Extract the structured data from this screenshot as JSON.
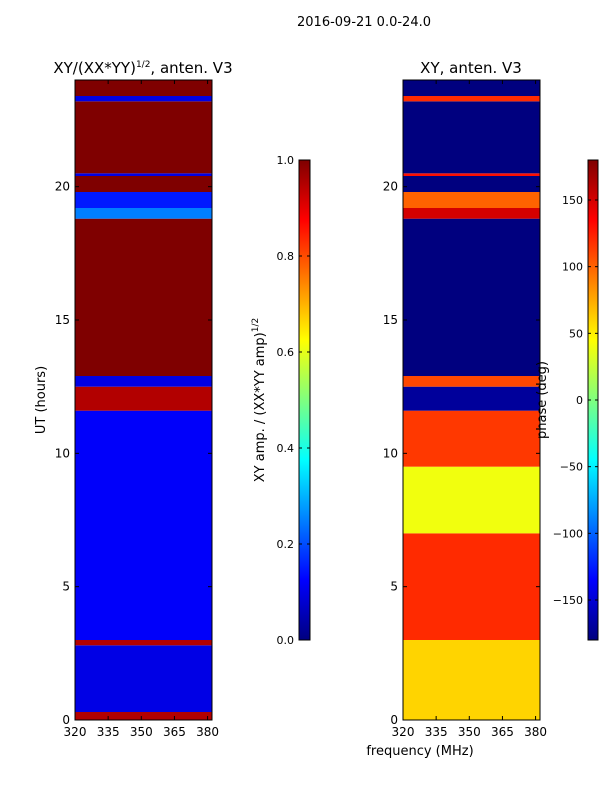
{
  "figure": {
    "suptitle": "2016-09-21 0.0-24.0",
    "xlabel": "frequency (MHz)",
    "ylabel": "UT (hours)"
  },
  "colors": {
    "jet_stops": [
      "#00007f",
      "#0000ff",
      "#007fff",
      "#00ffff",
      "#7fff7f",
      "#ffff00",
      "#ff7f00",
      "#ff0000",
      "#7f0000"
    ],
    "frame": "#000000"
  },
  "chart_data": [
    {
      "type": "heatmap",
      "title": "XY/(XX*YY)",
      "title_sup": "1/2",
      "title_suffix": ", anten. V3",
      "xlabel": "frequency (MHz)",
      "ylabel": "UT (hours)",
      "xlim": [
        320,
        382
      ],
      "ylim": [
        0,
        24
      ],
      "xticks": [
        320,
        335,
        350,
        365,
        380
      ],
      "yticks": [
        0,
        5,
        10,
        15,
        20
      ],
      "colorbar": {
        "label": "XY amp. / (XX*YY amp)",
        "label_sup": "1/2",
        "range": [
          0.0,
          1.0
        ],
        "ticks": [
          "0.0",
          "0.2",
          "0.4",
          "0.6",
          "0.8",
          "1.0"
        ],
        "tick_values": [
          0.0,
          0.2,
          0.4,
          0.6,
          0.8,
          1.0
        ]
      },
      "bands": [
        {
          "ut_start": 0.0,
          "ut_end": 0.3,
          "value": 0.95
        },
        {
          "ut_start": 0.3,
          "ut_end": 2.8,
          "value": 0.1
        },
        {
          "ut_start": 2.8,
          "ut_end": 3.0,
          "value": 0.95
        },
        {
          "ut_start": 3.0,
          "ut_end": 11.6,
          "value": 0.12
        },
        {
          "ut_start": 11.6,
          "ut_end": 12.5,
          "value": 0.95
        },
        {
          "ut_start": 12.5,
          "ut_end": 12.9,
          "value": 0.1
        },
        {
          "ut_start": 12.9,
          "ut_end": 18.8,
          "value": 1.0
        },
        {
          "ut_start": 18.8,
          "ut_end": 19.2,
          "value": 0.25
        },
        {
          "ut_start": 19.2,
          "ut_end": 19.8,
          "value": 0.15
        },
        {
          "ut_start": 19.8,
          "ut_end": 20.4,
          "value": 1.0
        },
        {
          "ut_start": 20.4,
          "ut_end": 20.5,
          "value": 0.1
        },
        {
          "ut_start": 20.5,
          "ut_end": 23.2,
          "value": 1.0
        },
        {
          "ut_start": 23.2,
          "ut_end": 23.4,
          "value": 0.1
        },
        {
          "ut_start": 23.4,
          "ut_end": 24.0,
          "value": 1.0
        }
      ]
    },
    {
      "type": "heatmap",
      "title": "XY, anten. V3",
      "xlabel": "frequency (MHz)",
      "ylabel": "",
      "xlim": [
        320,
        382
      ],
      "ylim": [
        0,
        24
      ],
      "xticks": [
        320,
        335,
        350,
        365,
        380
      ],
      "yticks": [
        0,
        5,
        10,
        15,
        20
      ],
      "colorbar": {
        "label": "phase (deg)",
        "range": [
          -180,
          180
        ],
        "ticks": [
          "−150",
          "−100",
          "−50",
          "0",
          "50",
          "100",
          "150"
        ],
        "tick_values": [
          -150,
          -100,
          -50,
          0,
          50,
          100,
          150
        ]
      },
      "bands": [
        {
          "ut_start": 0.0,
          "ut_end": 3.0,
          "value": 60
        },
        {
          "ut_start": 3.0,
          "ut_end": 7.0,
          "value": 120
        },
        {
          "ut_start": 7.0,
          "ut_end": 9.5,
          "value": 40
        },
        {
          "ut_start": 9.5,
          "ut_end": 11.6,
          "value": 115
        },
        {
          "ut_start": 11.6,
          "ut_end": 12.5,
          "value": -170
        },
        {
          "ut_start": 12.5,
          "ut_end": 12.9,
          "value": 110
        },
        {
          "ut_start": 12.9,
          "ut_end": 18.8,
          "value": -180
        },
        {
          "ut_start": 18.8,
          "ut_end": 19.2,
          "value": 150
        },
        {
          "ut_start": 19.2,
          "ut_end": 19.8,
          "value": 100
        },
        {
          "ut_start": 19.8,
          "ut_end": 20.4,
          "value": -180
        },
        {
          "ut_start": 20.4,
          "ut_end": 20.5,
          "value": 130
        },
        {
          "ut_start": 20.5,
          "ut_end": 23.2,
          "value": -180
        },
        {
          "ut_start": 23.2,
          "ut_end": 23.4,
          "value": 120
        },
        {
          "ut_start": 23.4,
          "ut_end": 24.0,
          "value": -180
        }
      ]
    }
  ]
}
